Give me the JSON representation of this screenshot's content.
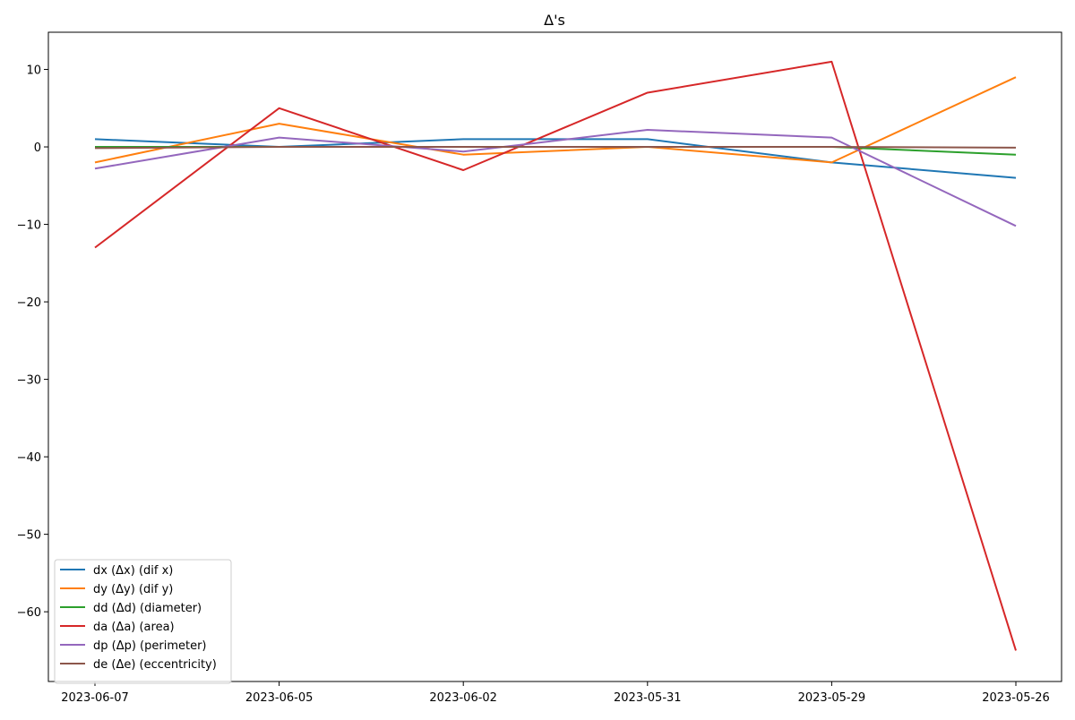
{
  "chart_data": {
    "type": "line",
    "title": "Δ's",
    "xlabel": "",
    "ylabel": "",
    "categories": [
      "2023-06-07",
      "2023-06-05",
      "2023-06-02",
      "2023-05-31",
      "2023-05-29",
      "2023-05-26"
    ],
    "ylim": [
      -69,
      14.8
    ],
    "yticks": [
      10,
      0,
      -10,
      -20,
      -30,
      -40,
      -50,
      -60
    ],
    "ytick_labels": [
      "10",
      "0",
      "−10",
      "−20",
      "−30",
      "−40",
      "−50",
      "−60"
    ],
    "grid": false,
    "legend_position": "lower-left",
    "series": [
      {
        "name": "dx (Δx) (dif x)",
        "color": "#1f77b4",
        "values": [
          1,
          0,
          1,
          1,
          -2,
          -4
        ]
      },
      {
        "name": "dy (Δy) (dif y)",
        "color": "#ff7f0e",
        "values": [
          -2,
          3,
          -1,
          0,
          -2,
          9
        ]
      },
      {
        "name": "dd (Δd) (diameter)",
        "color": "#2ca02c",
        "values": [
          0,
          0,
          0,
          0,
          0,
          -1
        ]
      },
      {
        "name": "da (Δa) (area)",
        "color": "#d62728",
        "values": [
          -13,
          5,
          -3,
          7,
          11,
          -65
        ]
      },
      {
        "name": "dp (Δp) (perimeter)",
        "color": "#9467bd",
        "values": [
          -2.8,
          1.2,
          -0.6,
          2.2,
          1.2,
          -10.2
        ]
      },
      {
        "name": "de (Δe) (eccentricity)",
        "color": "#8c564b",
        "values": [
          -0.15,
          0,
          0,
          0,
          0,
          -0.1
        ]
      }
    ]
  }
}
